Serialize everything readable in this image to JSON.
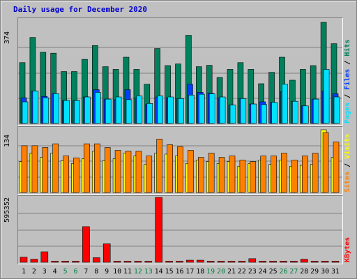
{
  "title": "Daily usage for December 2020",
  "panels": {
    "top": {
      "ymax_label": "374"
    },
    "middle": {
      "ymax_label": "134"
    },
    "bottom": {
      "ymax_label": "595352"
    }
  },
  "right_labels": {
    "top": {
      "pages": "Pages",
      "sep1": " / ",
      "files": "Files",
      "sep2": " / ",
      "hits": "Hits"
    },
    "middle": {
      "sites": "Sites",
      "sep1": " / ",
      "visits": "Visits"
    },
    "bottom": {
      "kbytes": "KBytes"
    }
  },
  "colors": {
    "hits": "#00805c",
    "files": "#0040ff",
    "pages": "#00e0ff",
    "visits": "#ff8000",
    "sites": "#ffff00",
    "kbytes": "#ff0000",
    "title": "#0000cc",
    "weekday_label": "#000000",
    "weekend_label": "#008040"
  },
  "chart_data": [
    {
      "type": "bar",
      "title": "Daily usage for December 2020",
      "ylabel": "Pages / Files / Hits",
      "ylim": [
        0,
        374
      ],
      "categories": [
        "1",
        "2",
        "3",
        "4",
        "5",
        "6",
        "7",
        "8",
        "9",
        "10",
        "11",
        "12",
        "13",
        "14",
        "15",
        "16",
        "17",
        "18",
        "19",
        "20",
        "21",
        "22",
        "23",
        "24",
        "25",
        "26",
        "27",
        "28",
        "29",
        "30",
        "31"
      ],
      "series": [
        {
          "name": "Hits",
          "values": [
            225,
            318,
            263,
            260,
            192,
            192,
            237,
            288,
            210,
            200,
            245,
            200,
            145,
            277,
            214,
            220,
            326,
            210,
            215,
            170,
            200,
            225,
            200,
            147,
            189,
            245,
            160,
            200,
            214,
            374,
            295
          ]
        },
        {
          "name": "Files",
          "values": [
            95,
            120,
            100,
            110,
            85,
            85,
            98,
            125,
            90,
            88,
            125,
            95,
            70,
            98,
            95,
            92,
            145,
            115,
            112,
            95,
            68,
            92,
            72,
            80,
            78,
            118,
            82,
            65,
            90,
            120,
            110
          ]
        },
        {
          "name": "Pages",
          "values": [
            80,
            120,
            95,
            110,
            85,
            85,
            98,
            115,
            90,
            98,
            88,
            102,
            74,
            102,
            98,
            92,
            105,
            108,
            110,
            98,
            68,
            92,
            72,
            70,
            78,
            145,
            82,
            65,
            90,
            200,
            98
          ]
        }
      ]
    },
    {
      "type": "bar",
      "ylabel": "Sites / Visits",
      "ylim": [
        0,
        134
      ],
      "categories": [
        "1",
        "2",
        "3",
        "4",
        "5",
        "6",
        "7",
        "8",
        "9",
        "10",
        "11",
        "12",
        "13",
        "14",
        "15",
        "16",
        "17",
        "18",
        "19",
        "20",
        "21",
        "22",
        "23",
        "24",
        "25",
        "26",
        "27",
        "28",
        "29",
        "30",
        "31"
      ],
      "series": [
        {
          "name": "Visits",
          "values": [
            100,
            100,
            96,
            104,
            78,
            74,
            104,
            104,
            96,
            90,
            88,
            88,
            78,
            114,
            102,
            98,
            90,
            75,
            84,
            75,
            78,
            69,
            66,
            78,
            78,
            84,
            69,
            78,
            84,
            128,
            108
          ]
        },
        {
          "name": "Sites",
          "values": [
            66,
            84,
            75,
            84,
            68,
            62,
            72,
            88,
            68,
            72,
            84,
            78,
            60,
            84,
            82,
            78,
            62,
            69,
            66,
            62,
            66,
            56,
            62,
            69,
            60,
            69,
            56,
            58,
            60,
            134,
            75
          ]
        }
      ]
    },
    {
      "type": "bar",
      "ylabel": "KBytes",
      "ylim": [
        0,
        595352
      ],
      "categories": [
        "1",
        "2",
        "3",
        "4",
        "5",
        "6",
        "7",
        "8",
        "9",
        "10",
        "11",
        "12",
        "13",
        "14",
        "15",
        "16",
        "17",
        "18",
        "19",
        "20",
        "21",
        "22",
        "23",
        "24",
        "25",
        "26",
        "27",
        "28",
        "29",
        "30",
        "31"
      ],
      "series": [
        {
          "name": "KBytes",
          "values": [
            47000,
            28000,
            96000,
            0,
            0,
            0,
            327000,
            42000,
            169000,
            0,
            0,
            0,
            0,
            595352,
            0,
            0,
            19000,
            19000,
            0,
            0,
            0,
            0,
            33000,
            0,
            0,
            0,
            0,
            28000,
            0,
            0,
            0
          ]
        }
      ]
    }
  ],
  "weekend_days": [
    5,
    6,
    12,
    13,
    19,
    20,
    26,
    27
  ]
}
